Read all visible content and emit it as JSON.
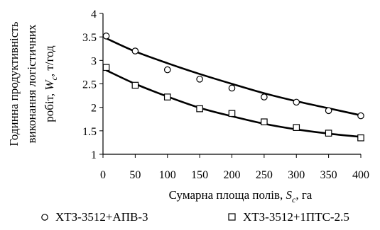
{
  "chart_data": {
    "type": "scatter",
    "title": "",
    "ylabel_lines": [
      "Годинна продуктивність",
      "виконання логістичних",
      "робіт,"
    ],
    "ylabel_symbol": "W",
    "ylabel_subscript": "c",
    "ylabel_unit": ", т/год",
    "xlabel": "Сумарна площа полів,",
    "xlabel_symbol": "S",
    "xlabel_subscript": "c",
    "xlabel_unit": ", га",
    "xlim": [
      0,
      400
    ],
    "ylim": [
      1,
      4
    ],
    "xticks": [
      "0",
      "50",
      "100",
      "150",
      "200",
      "250",
      "300",
      "350",
      "400"
    ],
    "yticks": [
      "1",
      "1.5",
      "2",
      "2.5",
      "3",
      "3.5",
      "4"
    ],
    "grid": false,
    "legend_position": "bottom",
    "series": [
      {
        "name": "ХТЗ-3512+АПВ-3",
        "marker": "circle",
        "x": [
          5,
          50,
          100,
          150,
          200,
          250,
          300,
          350,
          400
        ],
        "y": [
          3.52,
          3.2,
          2.8,
          2.6,
          2.41,
          2.22,
          2.11,
          1.93,
          1.82
        ],
        "trend_y": [
          3.47,
          3.19,
          2.94,
          2.71,
          2.5,
          2.3,
          2.13,
          1.98,
          1.83
        ]
      },
      {
        "name": "ХТЗ-3512+1ПТС-2.5",
        "marker": "square",
        "x": [
          5,
          50,
          100,
          150,
          200,
          250,
          300,
          350,
          400
        ],
        "y": [
          2.85,
          2.47,
          2.22,
          1.97,
          1.87,
          1.69,
          1.57,
          1.45,
          1.35
        ],
        "trend_y": [
          2.79,
          2.5,
          2.23,
          1.99,
          1.81,
          1.65,
          1.53,
          1.44,
          1.37
        ]
      }
    ]
  }
}
